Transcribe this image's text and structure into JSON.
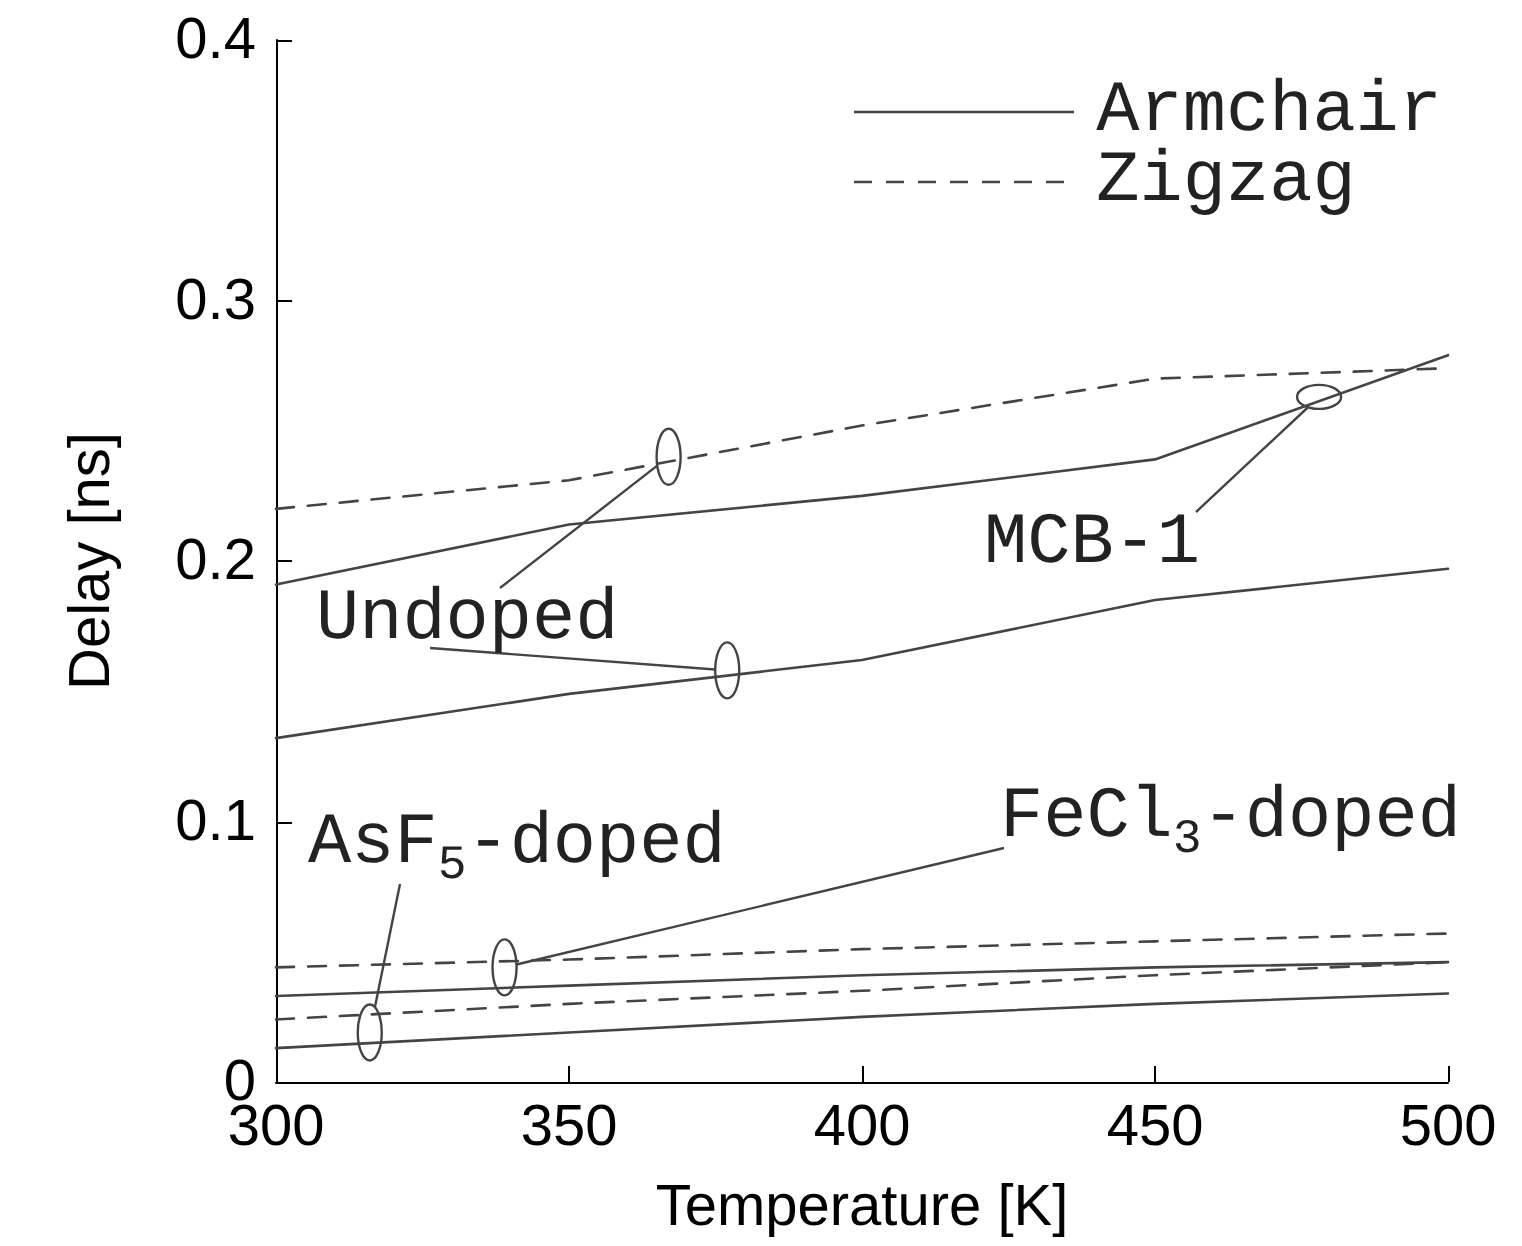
{
  "chart_data": {
    "type": "line",
    "xlabel": "Temperature [K]",
    "ylabel": "Delay [ns]",
    "x": [
      300,
      350,
      400,
      450,
      500
    ],
    "xlim": [
      300,
      500
    ],
    "xticks": [
      300,
      350,
      400,
      450,
      500
    ],
    "ylim": [
      0,
      0.4
    ],
    "yticks": [
      0,
      0.1,
      0.2,
      0.3,
      0.4
    ],
    "grid": false,
    "legend": "top right",
    "marker": "none",
    "series": [
      {
        "name": "Armchair",
        "color": "#444444",
        "line_style": "solid",
        "values": [
          0.132,
          0.149,
          0.162,
          0.185,
          0.197
        ]
      },
      {
        "color": "#444444",
        "line_style": "solid",
        "values": [
          0.191,
          0.214,
          0.225,
          0.239,
          0.279
        ]
      },
      {
        "name": "Zigzag",
        "color": "#444444",
        "line_style": "dashed",
        "values": [
          0.22,
          0.231,
          0.252,
          0.27,
          0.274
        ]
      },
      {
        "color": "#444444",
        "line_style": "solid",
        "values": [
          0.033,
          0.037,
          0.041,
          0.044,
          0.046
        ]
      },
      {
        "color": "#444444",
        "line_style": "solid",
        "values": [
          0.013,
          0.019,
          0.025,
          0.03,
          0.034
        ]
      },
      {
        "color": "#444444",
        "line_style": "dashed",
        "values": [
          0.044,
          0.047,
          0.051,
          0.054,
          0.057
        ]
      },
      {
        "color": "#444444",
        "line_style": "dashed",
        "values": [
          0.024,
          0.03,
          0.035,
          0.041,
          0.046
        ]
      }
    ],
    "annotations": [
      {
        "text": "Undoped",
        "x": 367,
        "y": 0.24
      },
      {
        "text": "MCB-1",
        "x": 478,
        "y": 0.263
      },
      {
        "text": "AsF$_{5}$-doped",
        "x": 316,
        "y": 0.019
      },
      {
        "text": "FeCl$_{3}$-doped",
        "x": 339,
        "y": 0.044
      }
    ]
  }
}
